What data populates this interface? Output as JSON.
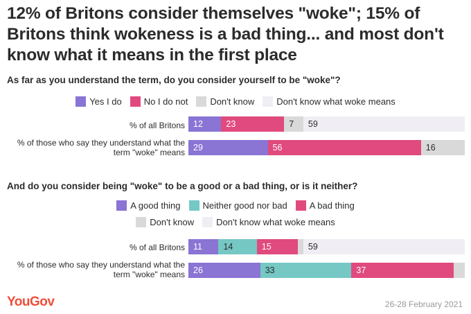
{
  "title": "12% of Britons consider themselves \"woke\"; 15% of Britons think wokeness is a bad thing... and most don't know what it means in the first place",
  "footer": {
    "brand": "YouGov",
    "date": "26-28 February 2021"
  },
  "colors": {
    "yes": "#8a74d4",
    "no": "#e04a7e",
    "dont_know": "#d9d9d9",
    "dont_know_meaning": "#f0eef4",
    "good": "#8a74d4",
    "neither": "#75c8c4",
    "bad": "#e04a7e",
    "brand": "#ee4e3b"
  },
  "chart_data": [
    {
      "type": "bar",
      "stacked": true,
      "orientation": "horizontal",
      "title": "As far as you understand the term, do you consider yourself to be \"woke\"?",
      "categories": [
        "% of all Britons",
        "% of those who say they understand what the term \"woke\" means"
      ],
      "series": [
        {
          "name": "Yes I do",
          "values": [
            12,
            29
          ]
        },
        {
          "name": "No I do not",
          "values": [
            23,
            56
          ]
        },
        {
          "name": "Don't know",
          "values": [
            7,
            16
          ]
        },
        {
          "name": "Don't know what woke means",
          "values": [
            59,
            0
          ]
        }
      ],
      "data_labels": [
        [
          "12",
          "23",
          "7",
          "59"
        ],
        [
          "29",
          "56",
          "16",
          ""
        ]
      ],
      "legend_position": "top"
    },
    {
      "type": "bar",
      "stacked": true,
      "orientation": "horizontal",
      "title": "And do you consider being \"woke\" to be a good or a bad thing, or is it neither?",
      "categories": [
        "% of all Britons",
        "% of those who say they understand what the term \"woke\" means"
      ],
      "series": [
        {
          "name": "A good thing",
          "values": [
            11,
            26
          ]
        },
        {
          "name": "Neither good nor bad",
          "values": [
            14,
            33
          ]
        },
        {
          "name": "A bad thing",
          "values": [
            15,
            37
          ]
        },
        {
          "name": "Don't know",
          "values": [
            2,
            4
          ]
        },
        {
          "name": "Don't know what woke means",
          "values": [
            59,
            0
          ]
        }
      ],
      "data_labels": [
        [
          "11",
          "14",
          "15",
          "",
          "59"
        ],
        [
          "26",
          "33",
          "37",
          "",
          ""
        ]
      ],
      "legend_position": "top"
    }
  ]
}
